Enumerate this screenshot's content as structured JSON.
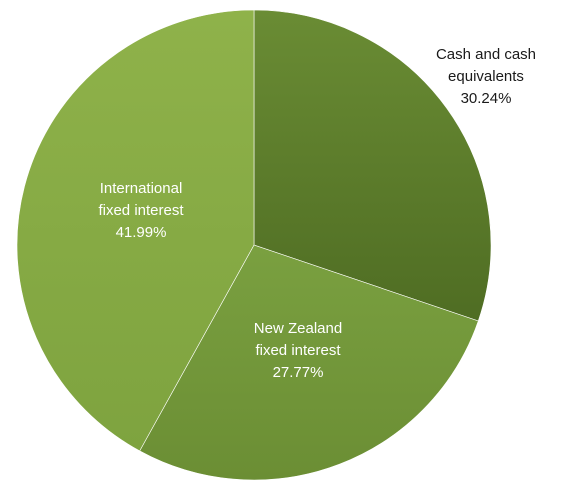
{
  "chart_data": {
    "type": "pie",
    "slices": [
      {
        "name": "Cash and cash equivalents",
        "label_lines": [
          "Cash and cash",
          "equivalents",
          "30.24%"
        ],
        "value": 30.24,
        "color": "#5e7f2c",
        "label_color": "#1a1a1a"
      },
      {
        "name": "New Zealand fixed interest",
        "label_lines": [
          "New Zealand",
          "fixed interest",
          "27.77%"
        ],
        "value": 27.77,
        "color": "#75993a",
        "label_color": "#ffffff"
      },
      {
        "name": "International fixed interest",
        "label_lines": [
          "International",
          "fixed interest",
          "41.99%"
        ],
        "value": 41.99,
        "color": "#87ac42",
        "label_color": "#ffffff"
      }
    ],
    "start_angle_deg": 0,
    "direction": "clockwise"
  }
}
